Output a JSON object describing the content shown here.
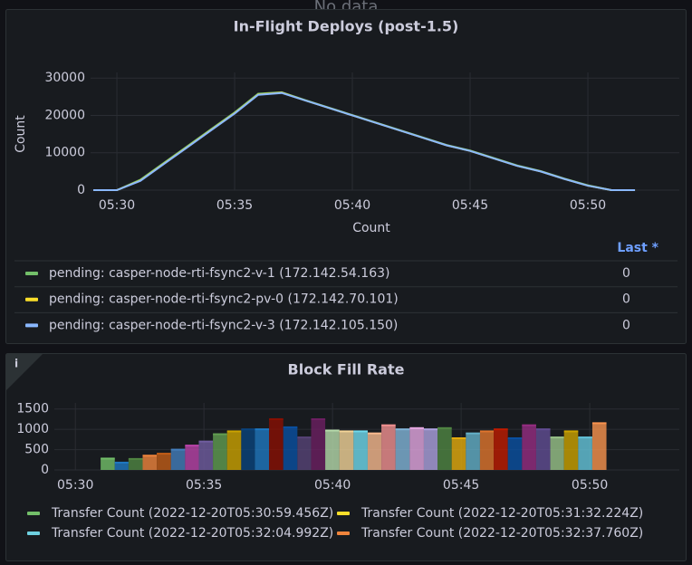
{
  "background_text": "No data",
  "chart_data": [
    {
      "type": "line",
      "title": "In-Flight Deploys (post-1.5)",
      "ylabel": "Count",
      "xlabel": "Count",
      "x": [
        "05:29",
        "05:30",
        "05:31",
        "05:32",
        "05:33",
        "05:34",
        "05:35",
        "05:36",
        "05:37",
        "05:38",
        "05:39",
        "05:40",
        "05:41",
        "05:42",
        "05:43",
        "05:44",
        "05:45",
        "05:46",
        "05:47",
        "05:48",
        "05:49",
        "05:50",
        "05:51",
        "05:52"
      ],
      "xlim": [
        "05:28:53",
        "05:53:53"
      ],
      "xticks": [
        "05:30",
        "05:35",
        "05:40",
        "05:45",
        "05:50"
      ],
      "ylim": [
        0,
        31500
      ],
      "yticks": [
        0,
        10000,
        20000,
        30000
      ],
      "grid": true,
      "legend_header": "Last *",
      "series": [
        {
          "name": "pending: casper-node-rti-fsync2-v-1 (172.142.54.163)",
          "color": "#73bf69",
          "last": 0,
          "values": [
            0,
            0,
            2800,
            7300,
            11800,
            16300,
            20800,
            25800,
            26200,
            24100,
            22100,
            20100,
            18100,
            16100,
            14100,
            12100,
            10600,
            8600,
            6600,
            5100,
            3100,
            1300,
            0,
            0
          ]
        },
        {
          "name": "pending: casper-node-rti-fsync2-pv-0 (172.142.70.101)",
          "color": "#fade2a",
          "last": 0,
          "values": [
            0,
            0,
            2600,
            7100,
            11600,
            16100,
            20600,
            25600,
            26100,
            24000,
            22000,
            20000,
            18000,
            16000,
            14000,
            12000,
            10500,
            8500,
            6500,
            5000,
            3000,
            1200,
            0,
            0
          ]
        },
        {
          "name": "pending: casper-node-rti-fsync2-v-3 (172.142.105.150)",
          "color": "#8ab8ff",
          "last": 0,
          "values": [
            0,
            0,
            2500,
            7000,
            11500,
            16000,
            20500,
            25500,
            26000,
            24000,
            22000,
            20000,
            18000,
            16000,
            14000,
            12000,
            10500,
            8500,
            6500,
            5000,
            3000,
            1200,
            0,
            0
          ]
        }
      ]
    },
    {
      "type": "bar",
      "title": "Block Fill Rate",
      "x": [
        "05:30:59",
        "05:31:32",
        "05:32:04",
        "05:32:37",
        "05:33:10",
        "05:33:43",
        "05:34:16",
        "05:34:48",
        "05:35:21",
        "05:35:54",
        "05:36:27",
        "05:36:59",
        "05:37:32",
        "05:38:05",
        "05:38:38",
        "05:39:10",
        "05:39:43",
        "05:40:16",
        "05:40:49",
        "05:41:22",
        "05:41:54",
        "05:42:27",
        "05:43:00",
        "05:43:33",
        "05:44:05",
        "05:44:38",
        "05:45:11",
        "05:45:44",
        "05:46:16",
        "05:46:49",
        "05:47:22",
        "05:47:55",
        "05:48:28",
        "05:49:00",
        "05:49:33",
        "05:50:06"
      ],
      "values": [
        280,
        180,
        270,
        350,
        400,
        500,
        600,
        700,
        880,
        950,
        1000,
        1000,
        1250,
        1050,
        800,
        1250,
        970,
        950,
        950,
        900,
        1100,
        1000,
        1030,
        1000,
        1030,
        780,
        900,
        950,
        1000,
        780,
        1100,
        1000,
        800,
        950,
        800,
        1150
      ],
      "colors": [
        "#73bf69",
        "#1f78c1",
        "#508642",
        "#ef843c",
        "#c15c17",
        "#447ebc",
        "#ba43a9",
        "#705da0",
        "#629e51",
        "#cca300",
        "#0a437c",
        "#1f78c1",
        "#890f02",
        "#0a50a1",
        "#584477",
        "#6d1f62",
        "#b7dbab",
        "#f4d598",
        "#70dbed",
        "#f9ba8f",
        "#f29191",
        "#82b5d8",
        "#e5a8e2",
        "#aea2e0",
        "#508642",
        "#e5ac0e",
        "#64b0c8",
        "#e0752d",
        "#bf1b00",
        "#0a50a1",
        "#962d82",
        "#614d93",
        "#9ac48a",
        "#cca300",
        "#65c5db",
        "#f9934e"
      ],
      "xlim": [
        "05:29:11",
        "05:53:29"
      ],
      "xticks": [
        "05:30",
        "05:35",
        "05:40",
        "05:45",
        "05:50"
      ],
      "ylim": [
        0,
        1650
      ],
      "yticks": [
        0,
        500,
        1000,
        1500
      ],
      "grid": true,
      "series": [
        {
          "name": "Transfer Count (2022-12-20T05:30:59.456Z)",
          "color": "#73bf69"
        },
        {
          "name": "Transfer Count (2022-12-20T05:31:32.224Z)",
          "color": "#fade2a"
        },
        {
          "name": "Transfer Count (2022-12-20T05:32:04.992Z)",
          "color": "#6ed0e0"
        },
        {
          "name": "Transfer Count (2022-12-20T05:32:37.760Z)",
          "color": "#ef843c"
        }
      ]
    }
  ]
}
